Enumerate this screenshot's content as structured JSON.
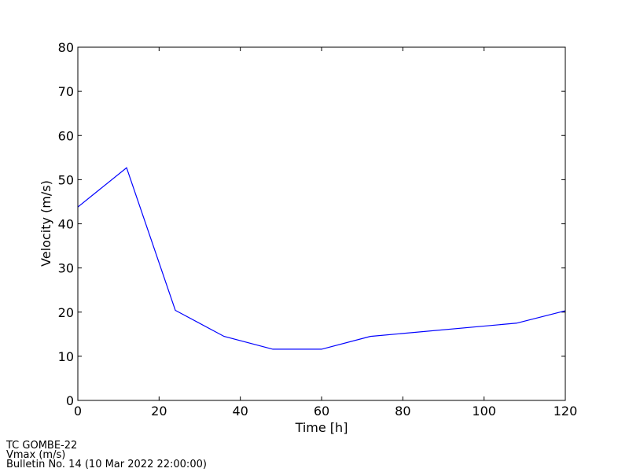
{
  "chart_data": {
    "type": "line",
    "x_label": "Time [h]",
    "y_label": "Velocity (m/s)",
    "x": [
      0,
      12,
      24,
      36,
      48,
      60,
      72,
      108,
      120
    ],
    "series": [
      {
        "name": "Vmax",
        "color": "#0000ff",
        "values": [
          43.8,
          52.7,
          20.4,
          14.5,
          11.6,
          11.6,
          14.5,
          17.5,
          20.3
        ]
      }
    ],
    "xlim": [
      0,
      120
    ],
    "xticks": [
      0,
      20,
      40,
      60,
      80,
      100,
      120
    ],
    "ylim": [
      0,
      80
    ],
    "yticks": [
      0,
      10,
      20,
      30,
      40,
      50,
      60,
      70,
      80
    ],
    "grid": false
  },
  "footer": [
    "TC GOMBE-22",
    "Vmax (m/s)",
    "Bulletin No. 14 (10 Mar 2022  22:00:00)"
  ]
}
